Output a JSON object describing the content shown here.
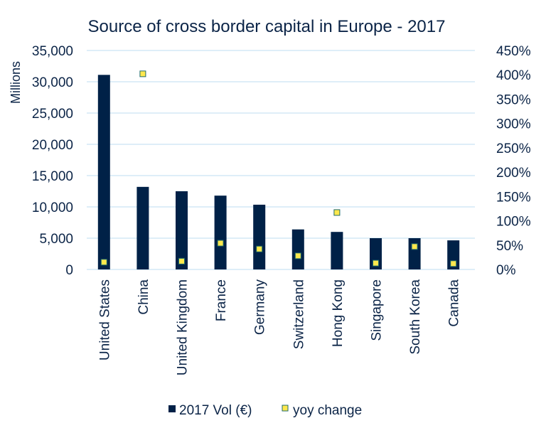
{
  "chart_data": {
    "type": "bar",
    "title": "Source of cross border capital in Europe - 2017",
    "ylabel": "Millions",
    "ylabel_right": "",
    "xlabel": "",
    "categories": [
      "United States",
      "China",
      "United Kingdom",
      "France",
      "Germany",
      "Switzerland",
      "Hong Kong",
      "Singapore",
      "South Korea",
      "Canada"
    ],
    "series": [
      {
        "name": "2017 Vol (€)",
        "type": "bar",
        "axis": "left",
        "color": "#002147",
        "values": [
          31100,
          13200,
          12500,
          11800,
          10350,
          6400,
          6000,
          5000,
          5000,
          4650
        ]
      },
      {
        "name": "yoy change",
        "type": "scatter",
        "axis": "right",
        "color": "#ffe84d",
        "edge_color": "#1f6b6b",
        "values": [
          15,
          402,
          17,
          54,
          42,
          28,
          117,
          13,
          47,
          12
        ]
      }
    ],
    "ylim": [
      0,
      35000
    ],
    "yticks": [
      "0",
      "5,000",
      "10,000",
      "15,000",
      "20,000",
      "25,000",
      "30,000",
      "35,000"
    ],
    "ylim_right": [
      0,
      450
    ],
    "yticks_right": [
      "0%",
      "50%",
      "100%",
      "150%",
      "200%",
      "250%",
      "300%",
      "350%",
      "400%",
      "450%"
    ],
    "grid": true,
    "legend_position": "bottom"
  }
}
